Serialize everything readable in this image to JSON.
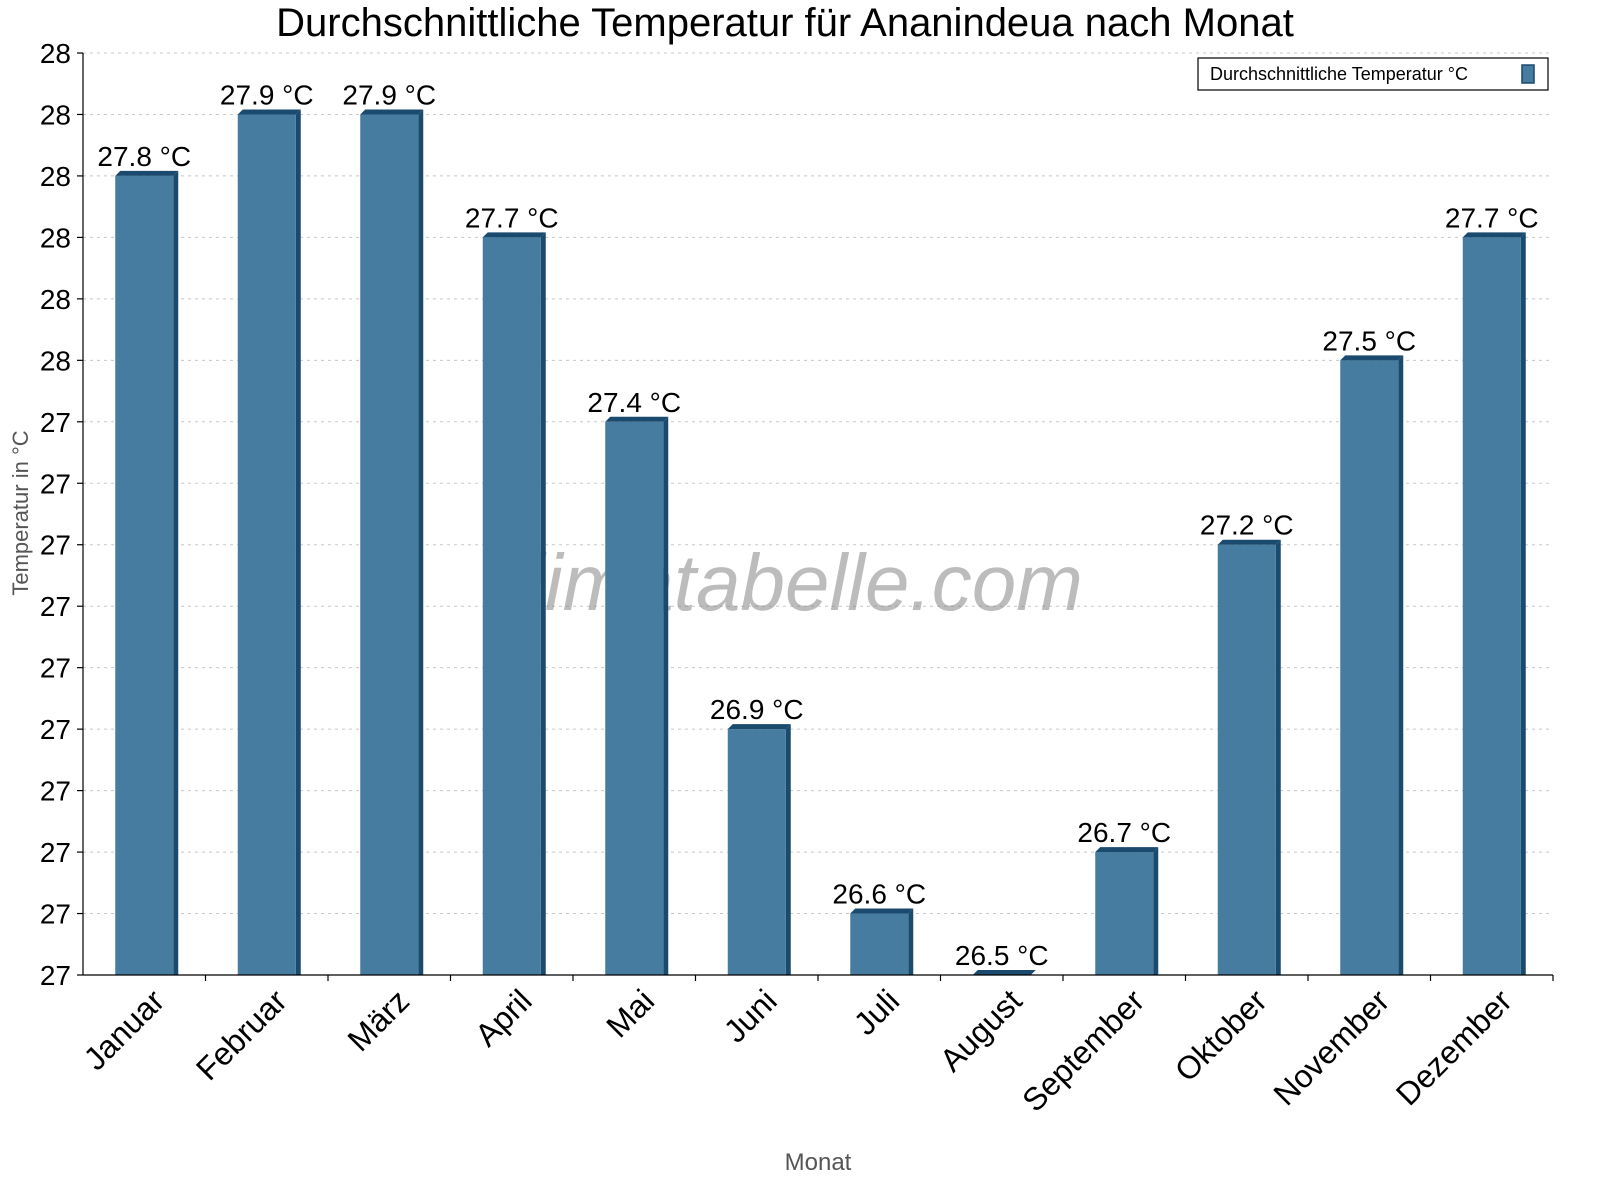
{
  "chart_data": {
    "type": "bar",
    "title": "Durchschnittliche Temperatur für Ananindeua nach Monat",
    "xlabel": "Monat",
    "ylabel": "Temperatur in °C",
    "categories": [
      "Januar",
      "Februar",
      "März",
      "April",
      "Mai",
      "Juni",
      "Juli",
      "August",
      "September",
      "Oktober",
      "November",
      "Dezember"
    ],
    "series": [
      {
        "name": "Durchschnittliche Temperatur °C",
        "values": [
          27.8,
          27.9,
          27.9,
          27.7,
          27.4,
          26.9,
          26.6,
          26.5,
          26.7,
          27.2,
          27.5,
          27.7
        ]
      }
    ],
    "data_labels": [
      "27.8 °C",
      "27.9 °C",
      "27.9 °C",
      "27.7 °C",
      "27.4 °C",
      "26.9 °C",
      "26.6 °C",
      "26.5 °C",
      "26.7 °C",
      "27.2 °C",
      "27.5 °C",
      "27.7 °C"
    ],
    "ylim": [
      26.5,
      28.0
    ],
    "yticks": [
      26.5,
      26.6,
      26.7,
      26.8,
      26.9,
      27.0,
      27.1,
      27.2,
      27.3,
      27.4,
      27.5,
      27.6,
      27.7,
      27.8,
      27.9,
      28.0
    ],
    "ytick_labels": [
      "27",
      "27",
      "27",
      "27",
      "27",
      "27",
      "27",
      "27",
      "27",
      "27",
      "28",
      "28",
      "28",
      "28",
      "28",
      "28"
    ],
    "grid": true,
    "legend": "top-right",
    "watermark": "klimatabelle.com",
    "colors": {
      "bar": "#467ca0",
      "bar_shade": "#1a4a6e",
      "grid": "#c8c8c8"
    }
  }
}
